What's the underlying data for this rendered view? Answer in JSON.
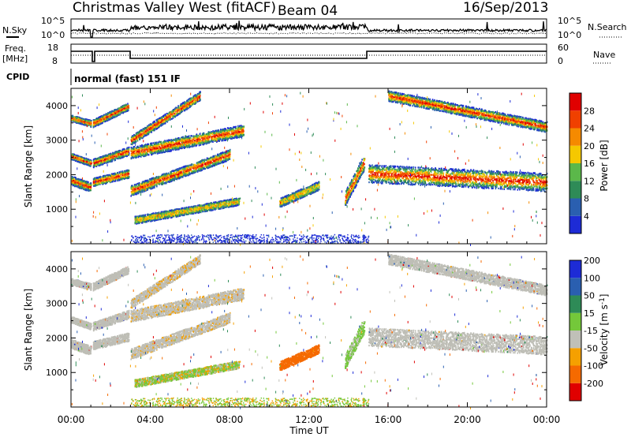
{
  "header": {
    "title": "Christmas Valley West (fitACF)",
    "beam": "Beam 04",
    "date": "16/Sep/2013"
  },
  "top_panels": {
    "nsky_label": "N.Sky",
    "nsky_ticks": [
      "10^5",
      "10^0"
    ],
    "nsky_right_ticks": [
      "10^5",
      "10^0"
    ],
    "nsearch_label": "N.Search",
    "freq_label": "Freq.",
    "freq_unit": "[MHz]",
    "freq_ticks": [
      "18",
      "8"
    ],
    "nave_ticks": [
      "60",
      "0"
    ],
    "nave_label": "Nave",
    "cpid_label": "CPID",
    "cpid_value": "normal (fast) 151 IF"
  },
  "colors": {
    "power": [
      "#1d2bd6",
      "#2a5fb0",
      "#2e8b57",
      "#5bb84a",
      "#f5c800",
      "#f58a00",
      "#f04000",
      "#e00000"
    ],
    "velocity": [
      "#1d2bd6",
      "#2a5fb0",
      "#2e8b57",
      "#74c83a",
      "#c0c0b8",
      "#f5a000",
      "#f56a00",
      "#e00000"
    ],
    "ground_scatter": "#bebeb6"
  },
  "chart_data": [
    {
      "type": "heatmap",
      "name": "power",
      "ylabel": "Slant Range [km]",
      "yticks": [
        1000,
        2000,
        3000,
        4000
      ],
      "ylim": [
        0,
        4500
      ],
      "xlim": [
        0,
        24
      ],
      "colorbar_label": "Power [dB]",
      "colorbar_ticks": [
        "4",
        "8",
        "12",
        "16",
        "20",
        "24",
        "28"
      ],
      "echo_bands": [
        {
          "t0": 0.0,
          "t1": 1.0,
          "r0": 1850,
          "r1": 1650,
          "hw": 130
        },
        {
          "t0": 1.1,
          "t1": 2.9,
          "r0": 1800,
          "r1": 2050,
          "hw": 120
        },
        {
          "t0": 0.0,
          "t1": 1.0,
          "r0": 2550,
          "r1": 2350,
          "hw": 90
        },
        {
          "t0": 1.1,
          "t1": 2.9,
          "r0": 2350,
          "r1": 2700,
          "hw": 120
        },
        {
          "t0": 0.0,
          "t1": 1.0,
          "r0": 3650,
          "r1": 3500,
          "hw": 90
        },
        {
          "t0": 1.1,
          "t1": 2.9,
          "r0": 3500,
          "r1": 4000,
          "hw": 110
        },
        {
          "t0": 3.0,
          "t1": 8.0,
          "r0": 1550,
          "r1": 2600,
          "hw": 150
        },
        {
          "t0": 3.0,
          "t1": 8.7,
          "r0": 2650,
          "r1": 3300,
          "hw": 170
        },
        {
          "t0": 3.0,
          "t1": 6.5,
          "r0": 3000,
          "r1": 4300,
          "hw": 130
        },
        {
          "t0": 3.2,
          "t1": 8.5,
          "r0": 700,
          "r1": 1250,
          "hw": 110
        },
        {
          "t0": 10.5,
          "t1": 12.5,
          "r0": 1200,
          "r1": 1700,
          "hw": 130
        },
        {
          "t0": 13.8,
          "t1": 14.8,
          "r0": 1300,
          "r1": 2400,
          "hw": 220
        },
        {
          "t0": 15.0,
          "t1": 24.0,
          "r0": 2050,
          "r1": 1800,
          "hw": 260
        },
        {
          "t0": 16.0,
          "t1": 24.0,
          "r0": 4300,
          "r1": 3400,
          "hw": 150
        }
      ]
    },
    {
      "type": "heatmap",
      "name": "velocity",
      "ylabel": "Slant Range [km]",
      "yticks": [
        1000,
        2000,
        3000,
        4000
      ],
      "ylim": [
        0,
        4500
      ],
      "xlim": [
        0,
        24
      ],
      "xlabel": "Time UT",
      "xticks": [
        "00:00",
        "04:00",
        "08:00",
        "12:00",
        "16:00",
        "20:00",
        "00:00"
      ],
      "colorbar_label": "Velocity [m s",
      "colorbar_unit_sup": "-1",
      "colorbar_ticks": [
        "-200",
        "-100",
        "-50",
        "-15",
        "15",
        "50",
        "100",
        "200"
      ]
    }
  ]
}
